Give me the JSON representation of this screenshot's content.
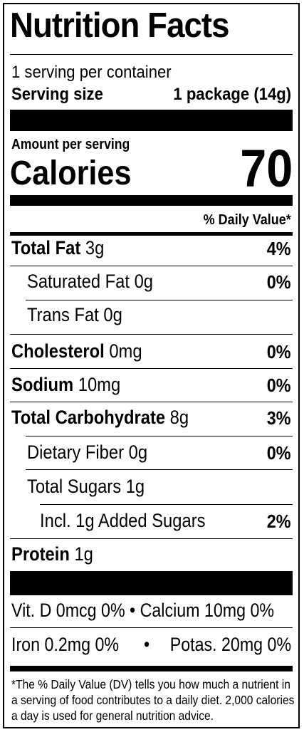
{
  "title": "Nutrition Facts",
  "servings_per_container": "1 serving per container",
  "serving_size_label": "Serving size",
  "serving_size_value": "1 package (14g)",
  "amount_per_serving": "Amount per serving",
  "calories_label": "Calories",
  "calories_value": "70",
  "dv_header": "% Daily Value*",
  "nutrients": [
    {
      "name": "Total Fat",
      "amount": "3g",
      "dv": "4%"
    },
    {
      "name": "Saturated Fat",
      "amount": "0g",
      "dv": "0%"
    },
    {
      "name": "Trans Fat",
      "amount": "0g",
      "dv": ""
    },
    {
      "name": "Cholesterol",
      "amount": "0mg",
      "dv": "0%"
    },
    {
      "name": "Sodium",
      "amount": "10mg",
      "dv": "0%"
    },
    {
      "name": "Total Carbohydrate",
      "amount": "8g",
      "dv": "3%"
    },
    {
      "name": "Dietary Fiber",
      "amount": "0g",
      "dv": "0%"
    },
    {
      "name": "Total Sugars",
      "amount": "1g",
      "dv": ""
    },
    {
      "name": "Incl. 1g Added Sugars",
      "amount": "",
      "dv": "2%"
    },
    {
      "name": "Protein",
      "amount": "1g",
      "dv": ""
    }
  ],
  "vitamins_line1": "Vit. D 0mcg 0% • Calcium 10mg 0%",
  "vitamins_line2_left": "Iron 0.2mg 0%",
  "vitamins_line2_sep": "•",
  "vitamins_line2_right": "Potas. 20mg 0%",
  "footnote": "*The % Daily Value (DV) tells you how much a nutrient in a serving of food contributes to a daily diet. 2,000 calories a day is used for general nutrition advice."
}
